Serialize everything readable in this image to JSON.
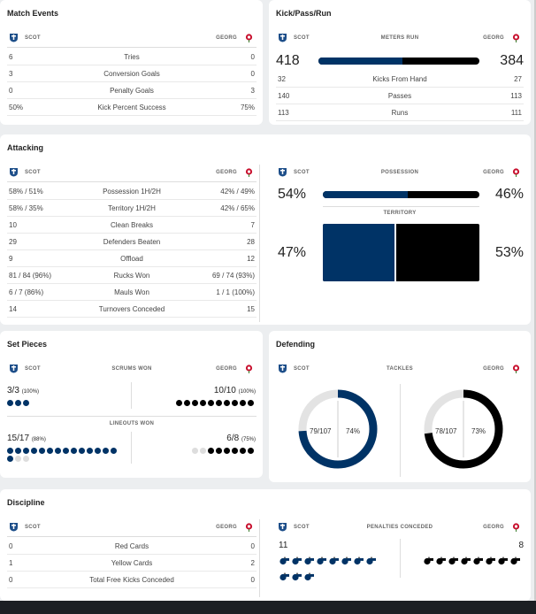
{
  "teams": {
    "home": "SCOT",
    "away": "GEORG"
  },
  "colors": {
    "home": "#003366",
    "away": "#000000",
    "empty": "#dddddd"
  },
  "icons": {
    "home": "scotland-crest-icon",
    "away": "georgia-rose-icon"
  },
  "match_events": {
    "title": "Match Events",
    "rows": [
      {
        "home": "6",
        "label": "Tries",
        "away": "0"
      },
      {
        "home": "3",
        "label": "Conversion Goals",
        "away": "0"
      },
      {
        "home": "0",
        "label": "Penalty Goals",
        "away": "3"
      },
      {
        "home": "50%",
        "label": "Kick Percent Success",
        "away": "75%"
      }
    ]
  },
  "kick_pass_run": {
    "title": "Kick/Pass/Run",
    "meters_label": "METERS RUN",
    "meters_home": "418",
    "meters_away": "384",
    "meters_home_share": 0.521,
    "rows": [
      {
        "home": "32",
        "label": "Kicks From Hand",
        "away": "27"
      },
      {
        "home": "140",
        "label": "Passes",
        "away": "113"
      },
      {
        "home": "113",
        "label": "Runs",
        "away": "111"
      }
    ]
  },
  "attacking": {
    "title": "Attacking",
    "rows": [
      {
        "home": "58% / 51%",
        "label": "Possession 1H/2H",
        "away": "42% / 49%"
      },
      {
        "home": "58% / 35%",
        "label": "Territory 1H/2H",
        "away": "42% / 65%"
      },
      {
        "home": "10",
        "label": "Clean Breaks",
        "away": "7"
      },
      {
        "home": "29",
        "label": "Defenders Beaten",
        "away": "28"
      },
      {
        "home": "9",
        "label": "Offload",
        "away": "12"
      },
      {
        "home": "81 / 84 (96%)",
        "label": "Rucks Won",
        "away": "69 / 74 (93%)"
      },
      {
        "home": "6 / 7 (86%)",
        "label": "Mauls Won",
        "away": "1 / 1 (100%)"
      },
      {
        "home": "14",
        "label": "Turnovers Conceded",
        "away": "15"
      }
    ],
    "possession_label": "POSSESSION",
    "possession_home": "54%",
    "possession_away": "46%",
    "possession_home_share": 0.54,
    "territory_label": "TERRITORY",
    "territory_home": "47%",
    "territory_away": "53%",
    "territory_home_share": 0.47
  },
  "set_pieces": {
    "title": "Set Pieces",
    "scrums_label": "SCRUMS WON",
    "scrum_home": "3/3",
    "scrum_home_pct": "(100%)",
    "scrum_away": "10/10",
    "scrum_away_pct": "(100%)",
    "scrum_home_won": 3,
    "scrum_home_total": 3,
    "scrum_away_won": 10,
    "scrum_away_total": 10,
    "lineouts_label": "LINEOUTS WON",
    "lineout_home": "15/17",
    "lineout_home_pct": "(88%)",
    "lineout_away": "6/8",
    "lineout_away_pct": "(75%)",
    "lineout_home_won": 15,
    "lineout_home_total": 17,
    "lineout_away_won": 6,
    "lineout_away_total": 8
  },
  "defending": {
    "title": "Defending",
    "tackles_label": "TACKLES",
    "home_tackles": "79/107",
    "home_pct": "74%",
    "home_share": 0.74,
    "away_tackles": "78/107",
    "away_pct": "73%",
    "away_share": 0.73
  },
  "discipline": {
    "title": "Discipline",
    "rows": [
      {
        "home": "0",
        "label": "Red Cards",
        "away": "0"
      },
      {
        "home": "1",
        "label": "Yellow Cards",
        "away": "2"
      },
      {
        "home": "0",
        "label": "Total Free Kicks Conceded",
        "away": "0"
      }
    ],
    "penalties_label": "PENALTIES CONCEDED",
    "penalties_home": "11",
    "penalties_away": "8",
    "penalties_home_count": 11,
    "penalties_away_count": 8
  }
}
